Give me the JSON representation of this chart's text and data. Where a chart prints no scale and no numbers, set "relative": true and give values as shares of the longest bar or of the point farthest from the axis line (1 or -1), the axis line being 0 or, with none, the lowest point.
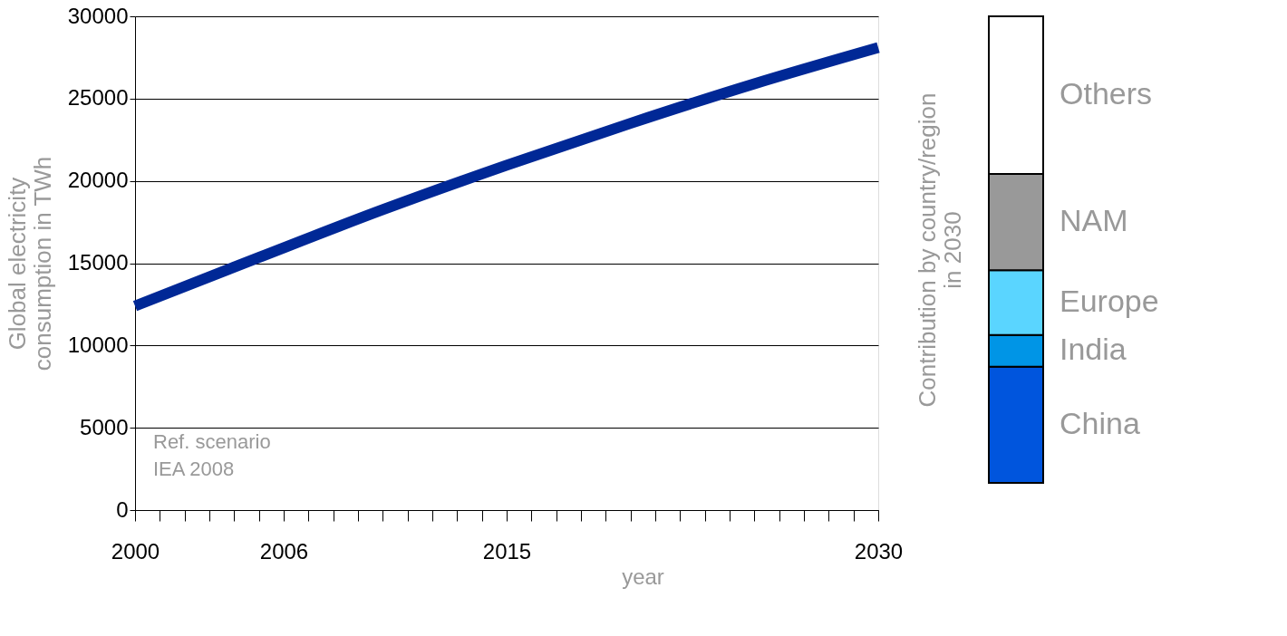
{
  "chart_data": [
    {
      "type": "line",
      "xlabel": "year",
      "ylabel": "Global electricity\nconsumption in TWh",
      "x": [
        2000,
        2005,
        2010,
        2015,
        2020,
        2025,
        2030
      ],
      "series": [
        {
          "color": "#002896",
          "values": [
            12400,
            15350,
            18250,
            20950,
            23500,
            25900,
            28100
          ]
        }
      ],
      "xlim": [
        2000,
        2030
      ],
      "xticks": [
        2000,
        {
          "value": 2001,
          "label": null
        },
        {
          "value": 2002,
          "label": null
        },
        {
          "value": 2003,
          "label": null
        },
        {
          "value": 2004,
          "label": null
        },
        {
          "value": 2005,
          "label": null
        },
        2006,
        {
          "value": 2007,
          "label": null
        },
        {
          "value": 2008,
          "label": null
        },
        {
          "value": 2009,
          "label": null
        },
        {
          "value": 2010,
          "label": null
        },
        {
          "value": 2011,
          "label": null
        },
        {
          "value": 2012,
          "label": null
        },
        {
          "value": 2013,
          "label": null
        },
        {
          "value": 2014,
          "label": null
        },
        2015,
        {
          "value": 2016,
          "label": null
        },
        {
          "value": 2017,
          "label": null
        },
        {
          "value": 2018,
          "label": null
        },
        {
          "value": 2019,
          "label": null
        },
        {
          "value": 2020,
          "label": null
        },
        {
          "value": 2021,
          "label": null
        },
        {
          "value": 2022,
          "label": null
        },
        {
          "value": 2023,
          "label": null
        },
        {
          "value": 2024,
          "label": null
        },
        {
          "value": 2025,
          "label": null
        },
        {
          "value": 2026,
          "label": null
        },
        {
          "value": 2027,
          "label": null
        },
        {
          "value": 2028,
          "label": null
        },
        {
          "value": 2029,
          "label": null
        },
        2030
      ],
      "ylim": [
        0,
        30000
      ],
      "yticks": [
        0,
        5000,
        10000,
        15000,
        20000,
        25000,
        30000
      ],
      "grid": "y",
      "marker": "none",
      "line_style": "solid",
      "annotations": [
        "Ref. scenario\nIEA 2008"
      ]
    },
    {
      "type": "bar",
      "stacked": true,
      "relative": true,
      "ylabel": "Contribution by country/region\nin 2030",
      "categories": [
        null
      ],
      "series": [
        {
          "name": "China",
          "color": "#0055dd",
          "values": [
            0.249
          ]
        },
        {
          "name": "India",
          "color": "#0095e6",
          "values": [
            0.068
          ]
        },
        {
          "name": "Europe",
          "color": "#5ad5ff",
          "values": [
            0.139
          ]
        },
        {
          "name": "NAM",
          "color": "#999999",
          "values": [
            0.206
          ]
        },
        {
          "name": "Others",
          "color": "#ffffff",
          "values": [
            0.338
          ]
        }
      ],
      "legend": false
    }
  ]
}
